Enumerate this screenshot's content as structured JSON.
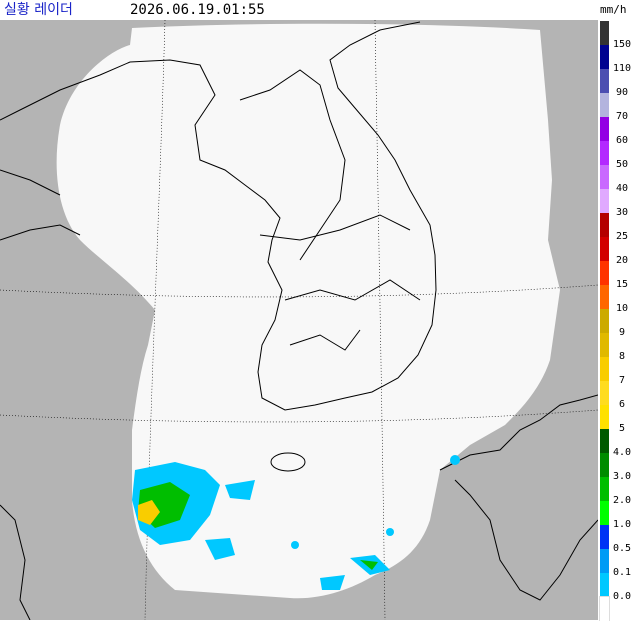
{
  "header": {
    "title": "실황 레이더",
    "timestamp": "2026.06.19.01:55",
    "unit": "mm/h"
  },
  "legend": [
    {
      "label": "150",
      "color": "#333333"
    },
    {
      "label": "110",
      "color": "#000390"
    },
    {
      "label": "90",
      "color": "#4c4eb1"
    },
    {
      "label": "70",
      "color": "#b3b4de"
    },
    {
      "label": "60",
      "color": "#9300e4"
    },
    {
      "label": "50",
      "color": "#b329ff"
    },
    {
      "label": "40",
      "color": "#c969ff"
    },
    {
      "label": "30",
      "color": "#e0a9ff"
    },
    {
      "label": "25",
      "color": "#b40000"
    },
    {
      "label": "20",
      "color": "#d20000"
    },
    {
      "label": "15",
      "color": "#ff3300"
    },
    {
      "label": "10",
      "color": "#ff6600"
    },
    {
      "label": "9",
      "color": "#ccaa00"
    },
    {
      "label": "8",
      "color": "#e0b900"
    },
    {
      "label": "7",
      "color": "#f9cd00"
    },
    {
      "label": "6",
      "color": "#ffdc1f"
    },
    {
      "label": "5",
      "color": "#ffe100"
    },
    {
      "label": "4.0",
      "color": "#005a00"
    },
    {
      "label": "3.0",
      "color": "#008c00"
    },
    {
      "label": "2.0",
      "color": "#00be00"
    },
    {
      "label": "1.0",
      "color": "#00ff00"
    },
    {
      "label": "0.5",
      "color": "#0033f5"
    },
    {
      "label": "0.1",
      "color": "#009bf5"
    },
    {
      "label": "0.0",
      "color": "#00c8ff"
    }
  ]
}
